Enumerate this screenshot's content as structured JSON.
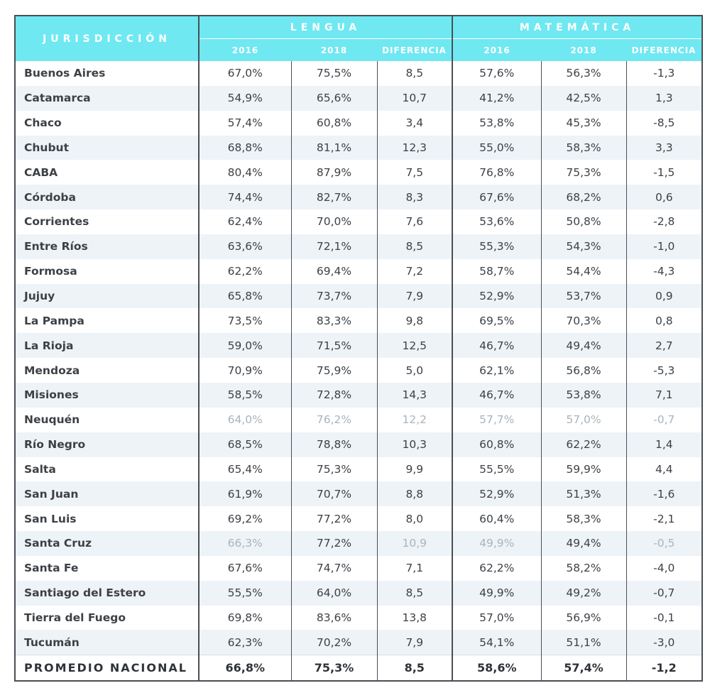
{
  "header": {
    "jurisdiccion": "JURISDICCIÓN",
    "lengua": "LENGUA",
    "matematica": "MATEMÁTICA",
    "y2016": "2016",
    "y2018": "2018",
    "diferencia": "DIFERENCIA"
  },
  "rows": [
    {
      "name": "Buenos Aires",
      "l16": "67,0%",
      "l18": "75,5%",
      "ld": "8,5",
      "m16": "57,6%",
      "m18": "56,3%",
      "md": "-1,3"
    },
    {
      "name": "Catamarca",
      "l16": "54,9%",
      "l18": "65,6%",
      "ld": "10,7",
      "m16": "41,2%",
      "m18": "42,5%",
      "md": "1,3"
    },
    {
      "name": "Chaco",
      "l16": "57,4%",
      "l18": "60,8%",
      "ld": "3,4",
      "m16": "53,8%",
      "m18": "45,3%",
      "md": "-8,5"
    },
    {
      "name": "Chubut",
      "l16": "68,8%",
      "l18": "81,1%",
      "ld": "12,3",
      "m16": "55,0%",
      "m18": "58,3%",
      "md": "3,3"
    },
    {
      "name": "CABA",
      "l16": "80,4%",
      "l18": "87,9%",
      "ld": "7,5",
      "m16": "76,8%",
      "m18": "75,3%",
      "md": "-1,5"
    },
    {
      "name": "Córdoba",
      "l16": "74,4%",
      "l18": "82,7%",
      "ld": "8,3",
      "m16": "67,6%",
      "m18": "68,2%",
      "md": "0,6"
    },
    {
      "name": "Corrientes",
      "l16": "62,4%",
      "l18": "70,0%",
      "ld": "7,6",
      "m16": "53,6%",
      "m18": "50,8%",
      "md": "-2,8"
    },
    {
      "name": "Entre Ríos",
      "l16": "63,6%",
      "l18": "72,1%",
      "ld": "8,5",
      "m16": "55,3%",
      "m18": "54,3%",
      "md": "-1,0"
    },
    {
      "name": "Formosa",
      "l16": "62,2%",
      "l18": "69,4%",
      "ld": "7,2",
      "m16": "58,7%",
      "m18": "54,4%",
      "md": "-4,3"
    },
    {
      "name": "Jujuy",
      "l16": "65,8%",
      "l18": "73,7%",
      "ld": "7,9",
      "m16": "52,9%",
      "m18": "53,7%",
      "md": "0,9"
    },
    {
      "name": "La Pampa",
      "l16": "73,5%",
      "l18": "83,3%",
      "ld": "9,8",
      "m16": "69,5%",
      "m18": "70,3%",
      "md": "0,8"
    },
    {
      "name": "La Rioja",
      "l16": "59,0%",
      "l18": "71,5%",
      "ld": "12,5",
      "m16": "46,7%",
      "m18": "49,4%",
      "md": "2,7"
    },
    {
      "name": "Mendoza",
      "l16": "70,9%",
      "l18": "75,9%",
      "ld": "5,0",
      "m16": "62,1%",
      "m18": "56,8%",
      "md": "-5,3"
    },
    {
      "name": "Misiones",
      "l16": "58,5%",
      "l18": "72,8%",
      "ld": "14,3",
      "m16": "46,7%",
      "m18": "53,8%",
      "md": "7,1"
    },
    {
      "name": "Neuquén",
      "l16": "64,0%",
      "l18": "76,2%",
      "ld": "12,2",
      "m16": "57,7%",
      "m18": "57,0%",
      "md": "-0,7"
    },
    {
      "name": "Río Negro",
      "l16": "68,5%",
      "l18": "78,8%",
      "ld": "10,3",
      "m16": "60,8%",
      "m18": "62,2%",
      "md": "1,4"
    },
    {
      "name": "Salta",
      "l16": "65,4%",
      "l18": "75,3%",
      "ld": "9,9",
      "m16": "55,5%",
      "m18": "59,9%",
      "md": "4,4"
    },
    {
      "name": "San Juan",
      "l16": "61,9%",
      "l18": "70,7%",
      "ld": "8,8",
      "m16": "52,9%",
      "m18": "51,3%",
      "md": "-1,6"
    },
    {
      "name": "San Luis",
      "l16": "69,2%",
      "l18": "77,2%",
      "ld": "8,0",
      "m16": "60,4%",
      "m18": "58,3%",
      "md": "-2,1"
    },
    {
      "name": "Santa Cruz",
      "l16": "66,3%",
      "l18": "77,2%",
      "ld": "10,9",
      "m16": "49,9%",
      "m18": "49,4%",
      "md": "-0,5"
    },
    {
      "name": "Santa Fe",
      "l16": "67,6%",
      "l18": "74,7%",
      "ld": "7,1",
      "m16": "62,2%",
      "m18": "58,2%",
      "md": "-4,0"
    },
    {
      "name": "Santiago del Estero",
      "l16": "55,5%",
      "l18": "64,0%",
      "ld": "8,5",
      "m16": "49,9%",
      "m18": "49,2%",
      "md": "-0,7"
    },
    {
      "name": "Tierra del Fuego",
      "l16": "69,8%",
      "l18": "83,6%",
      "ld": "13,8",
      "m16": "57,0%",
      "m18": "56,9%",
      "md": "-0,1"
    },
    {
      "name": "Tucumán",
      "l16": "62,3%",
      "l18": "70,2%",
      "ld": "7,9",
      "m16": "54,1%",
      "m18": "51,1%",
      "md": "-3,0"
    }
  ],
  "total": {
    "name": "PROMEDIO NACIONAL",
    "l16": "66,8%",
    "l18": "75,3%",
    "ld": "8,5",
    "m16": "58,6%",
    "m18": "57,4%",
    "md": "-1,2"
  },
  "colors": {
    "header_bg": "#6fe8f2",
    "stripe": "#eef3f8",
    "border": "#4a4f55",
    "faded_text": "#a9b4bc"
  }
}
